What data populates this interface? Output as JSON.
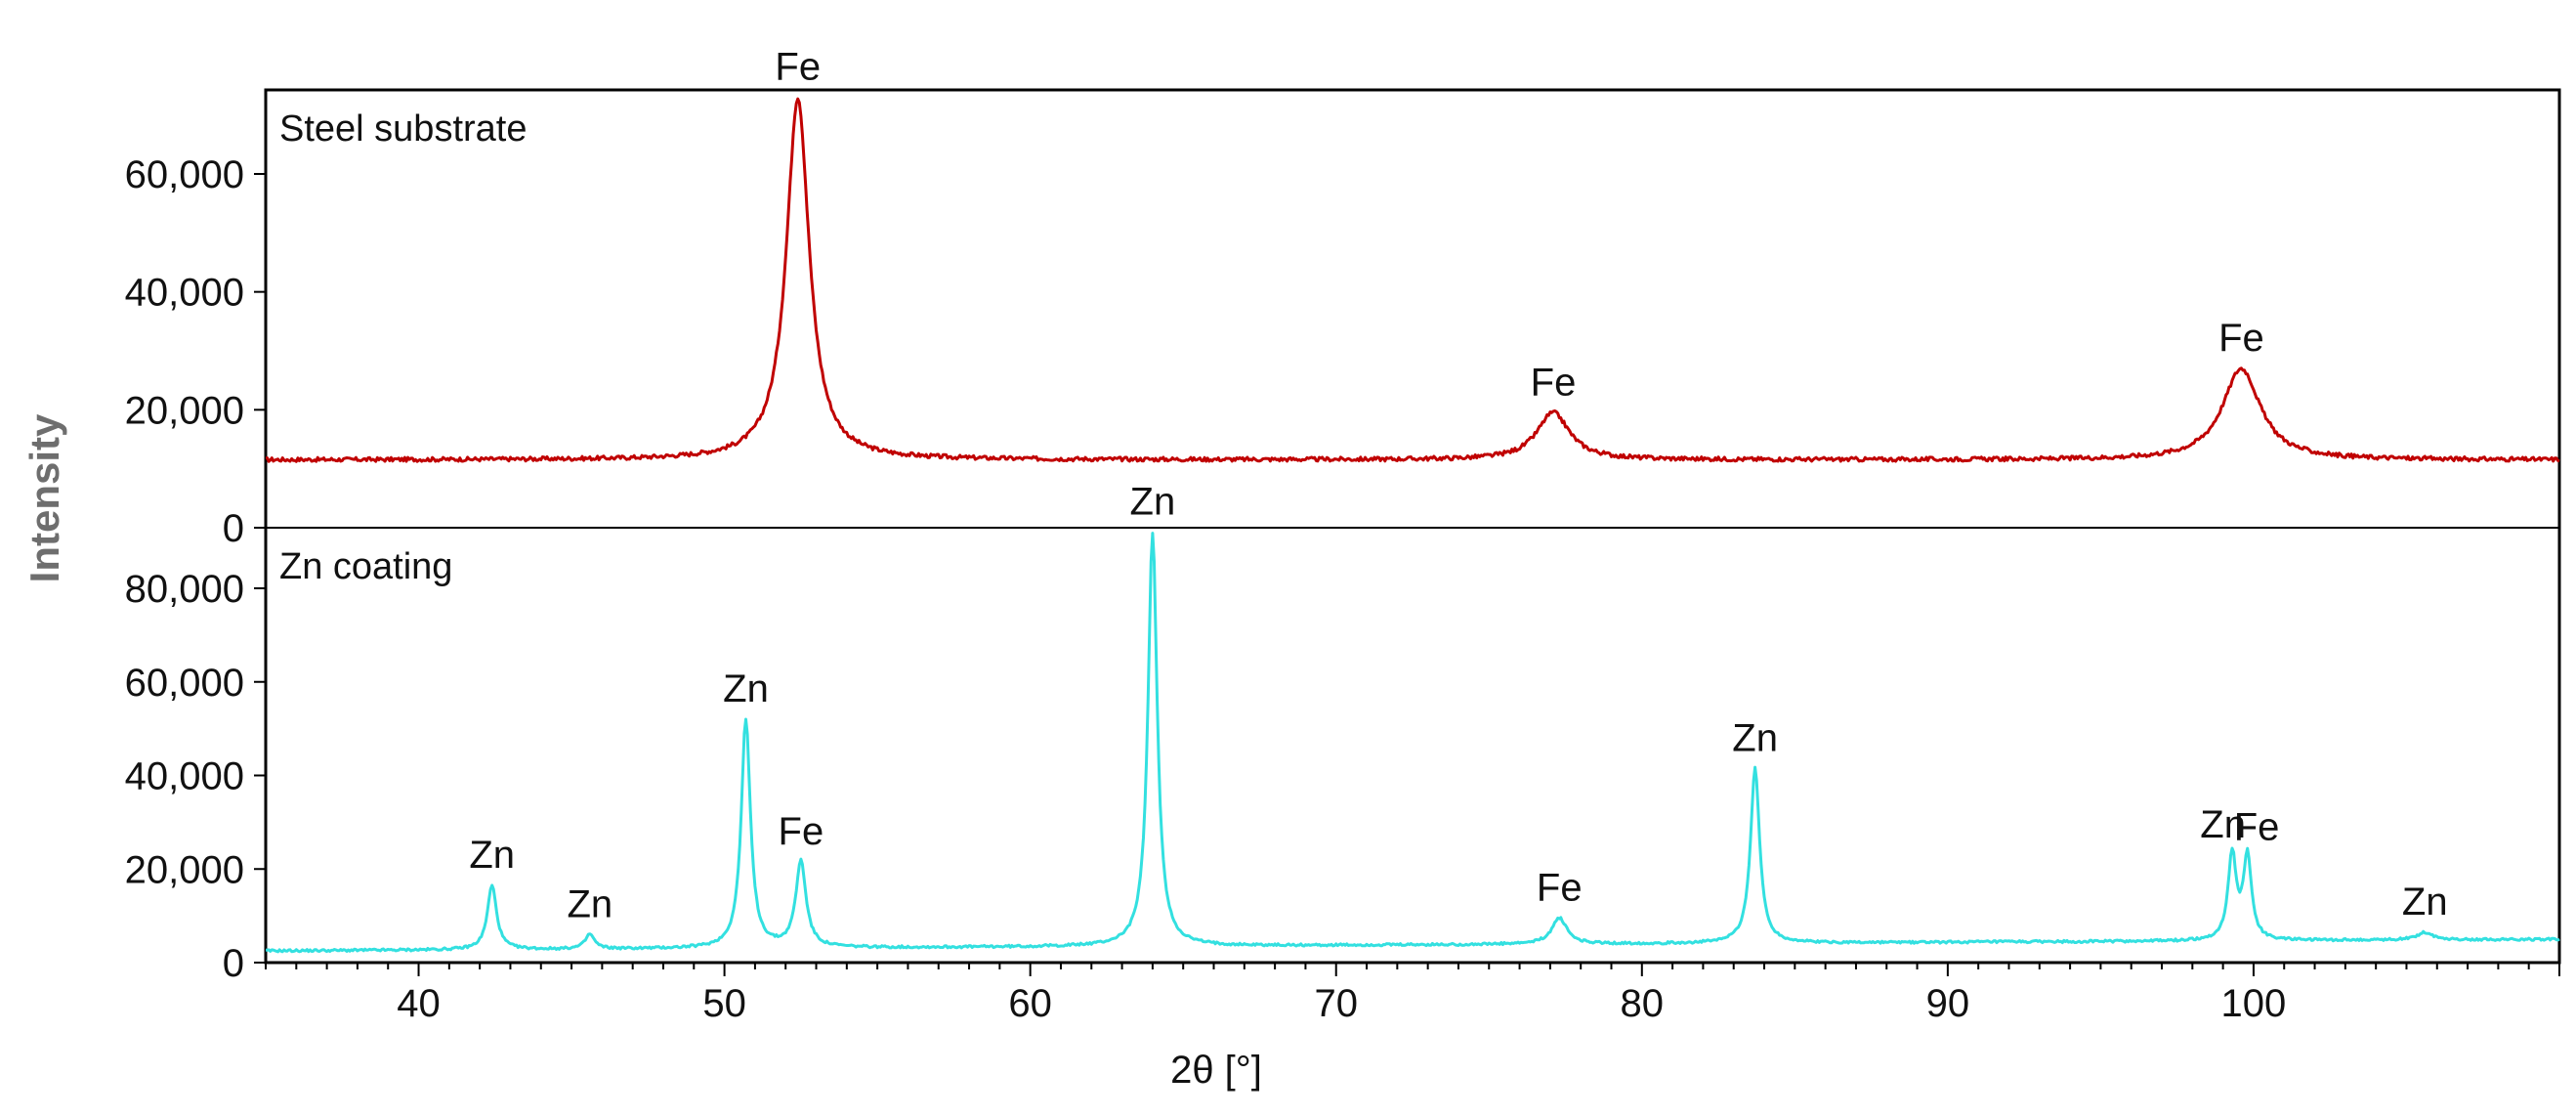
{
  "chart_data": {
    "type": "line",
    "xlabel": "2θ [°]",
    "ylabel": "Intensity",
    "xlim": [
      35,
      110
    ],
    "xticks": [
      40,
      50,
      60,
      70,
      80,
      90,
      100
    ],
    "colors": {
      "steel": "#c00000",
      "zn": "#33e0e0"
    },
    "panels": [
      {
        "id": "steel",
        "title": "Steel substrate",
        "ylim": [
          0,
          73000
        ],
        "yticks": [
          0,
          20000,
          40000,
          60000
        ],
        "ytick_labels": [
          "0",
          "20,000",
          "40,000",
          "60,000"
        ],
        "series": {
          "baseline": 11500,
          "peaks": [
            {
              "x": 52.4,
              "y": 73000,
              "width": 0.45
            },
            {
              "x": 77.1,
              "y": 19500,
              "width": 0.65
            },
            {
              "x": 99.6,
              "y": 27000,
              "width": 0.75
            }
          ]
        },
        "annotations": [
          {
            "x": 52.4,
            "y": 73000,
            "text": "Fe"
          },
          {
            "x": 77.1,
            "y": 19500,
            "text": "Fe"
          },
          {
            "x": 99.6,
            "y": 27000,
            "text": "Fe"
          }
        ]
      },
      {
        "id": "zn",
        "title": "Zn coating",
        "ylim": [
          0,
          92000
        ],
        "yticks": [
          0,
          20000,
          40000,
          60000,
          80000
        ],
        "ytick_labels": [
          "0",
          "20,000",
          "40,000",
          "60,000",
          "80,000"
        ],
        "series": {
          "baseline_start": 2500,
          "baseline_end": 5000,
          "peaks": [
            {
              "x": 42.4,
              "y": 16500,
              "width": 0.18
            },
            {
              "x": 45.6,
              "y": 6000,
              "width": 0.18
            },
            {
              "x": 50.7,
              "y": 52000,
              "width": 0.18
            },
            {
              "x": 52.5,
              "y": 21500,
              "width": 0.2
            },
            {
              "x": 64.0,
              "y": 92000,
              "width": 0.18
            },
            {
              "x": 77.3,
              "y": 9500,
              "width": 0.3
            },
            {
              "x": 83.7,
              "y": 41500,
              "width": 0.18
            },
            {
              "x": 99.3,
              "y": 23000,
              "width": 0.16
            },
            {
              "x": 99.8,
              "y": 22500,
              "width": 0.16
            },
            {
              "x": 105.6,
              "y": 6500,
              "width": 0.3
            }
          ]
        },
        "annotations": [
          {
            "x": 42.4,
            "y": 16500,
            "text": "Zn"
          },
          {
            "x": 45.6,
            "y": 6000,
            "text": "Zn"
          },
          {
            "x": 50.7,
            "y": 52000,
            "text": "Zn"
          },
          {
            "x": 52.5,
            "y": 21500,
            "text": "Fe"
          },
          {
            "x": 64.0,
            "y": 92000,
            "text": "Zn"
          },
          {
            "x": 77.3,
            "y": 9500,
            "text": "Fe"
          },
          {
            "x": 83.7,
            "y": 41500,
            "text": "Zn"
          },
          {
            "x": 99.0,
            "y": 23000,
            "text": "Zn"
          },
          {
            "x": 100.1,
            "y": 22500,
            "text": "Fe"
          },
          {
            "x": 105.6,
            "y": 6500,
            "text": "Zn"
          }
        ]
      }
    ]
  }
}
